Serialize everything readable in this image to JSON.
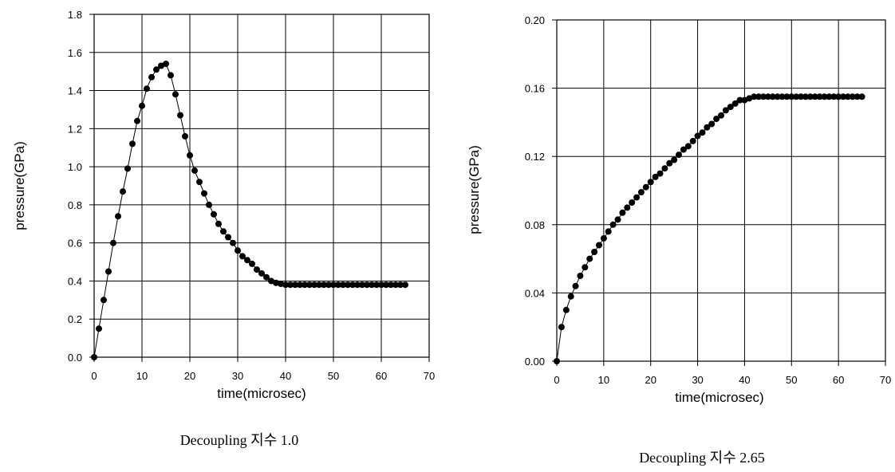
{
  "chart_data": [
    {
      "type": "line",
      "xlabel": "time(microsec)",
      "ylabel": "pressure(GPa)",
      "caption": "Decoupling 지수 1.0",
      "xlim": [
        0,
        70
      ],
      "ylim": [
        0,
        1.8
      ],
      "xticks": [
        0,
        10,
        20,
        30,
        40,
        50,
        60,
        70
      ],
      "xtick_labels": [
        "0",
        "10",
        "20",
        "30",
        "40",
        "50",
        "60",
        "70"
      ],
      "yticks": [
        0,
        0.2,
        0.4,
        0.6,
        0.8,
        1.0,
        1.2,
        1.4,
        1.6,
        1.8
      ],
      "ytick_labels": [
        "0.0",
        "0.2",
        "0.4",
        "0.6",
        "0.8",
        "1.0",
        "1.2",
        "1.4",
        "1.6",
        "1.8"
      ],
      "grid": true,
      "x": [
        0,
        1,
        2,
        3,
        4,
        5,
        6,
        7,
        8,
        9,
        10,
        11,
        12,
        13,
        14,
        15,
        16,
        17,
        18,
        19,
        20,
        21,
        22,
        23,
        24,
        25,
        26,
        27,
        28,
        29,
        30,
        31,
        32,
        33,
        34,
        35,
        36,
        37,
        38,
        39,
        40,
        41,
        42,
        43,
        44,
        45,
        46,
        47,
        48,
        49,
        50,
        51,
        52,
        53,
        54,
        55,
        56,
        57,
        58,
        59,
        60,
        61,
        62,
        63,
        64,
        65
      ],
      "y": [
        0.0,
        0.15,
        0.3,
        0.45,
        0.6,
        0.74,
        0.87,
        0.99,
        1.12,
        1.24,
        1.32,
        1.41,
        1.47,
        1.51,
        1.53,
        1.54,
        1.48,
        1.38,
        1.27,
        1.16,
        1.06,
        0.98,
        0.92,
        0.86,
        0.8,
        0.75,
        0.7,
        0.66,
        0.63,
        0.6,
        0.56,
        0.53,
        0.51,
        0.49,
        0.46,
        0.44,
        0.42,
        0.4,
        0.39,
        0.385,
        0.38,
        0.38,
        0.38,
        0.38,
        0.38,
        0.38,
        0.38,
        0.38,
        0.38,
        0.38,
        0.38,
        0.38,
        0.38,
        0.38,
        0.38,
        0.38,
        0.38,
        0.38,
        0.38,
        0.38,
        0.38,
        0.38,
        0.38,
        0.38,
        0.38,
        0.38
      ]
    },
    {
      "type": "line",
      "xlabel": "time(microsec)",
      "ylabel": "pressure(GPa)",
      "caption": "Decoupling 지수 2.65",
      "xlim": [
        0,
        70
      ],
      "ylim": [
        0,
        0.2
      ],
      "xticks": [
        0,
        10,
        20,
        30,
        40,
        50,
        60,
        70
      ],
      "xtick_labels": [
        "0",
        "10",
        "20",
        "30",
        "40",
        "50",
        "60",
        "70"
      ],
      "yticks": [
        0,
        0.04,
        0.08,
        0.12,
        0.16,
        0.2
      ],
      "ytick_labels": [
        "0.00",
        "0.04",
        "0.08",
        "0.12",
        "0.16",
        "0.20"
      ],
      "grid": true,
      "x": [
        0,
        1,
        2,
        3,
        4,
        5,
        6,
        7,
        8,
        9,
        10,
        11,
        12,
        13,
        14,
        15,
        16,
        17,
        18,
        19,
        20,
        21,
        22,
        23,
        24,
        25,
        26,
        27,
        28,
        29,
        30,
        31,
        32,
        33,
        34,
        35,
        36,
        37,
        38,
        39,
        40,
        41,
        42,
        43,
        44,
        45,
        46,
        47,
        48,
        49,
        50,
        51,
        52,
        53,
        54,
        55,
        56,
        57,
        58,
        59,
        60,
        61,
        62,
        63,
        64,
        65
      ],
      "y": [
        0.0,
        0.02,
        0.03,
        0.038,
        0.044,
        0.05,
        0.055,
        0.06,
        0.064,
        0.068,
        0.072,
        0.076,
        0.08,
        0.083,
        0.087,
        0.09,
        0.093,
        0.096,
        0.099,
        0.102,
        0.105,
        0.108,
        0.11,
        0.113,
        0.116,
        0.118,
        0.121,
        0.124,
        0.126,
        0.129,
        0.132,
        0.134,
        0.137,
        0.139,
        0.142,
        0.144,
        0.147,
        0.149,
        0.151,
        0.153,
        0.153,
        0.154,
        0.155,
        0.155,
        0.155,
        0.155,
        0.155,
        0.155,
        0.155,
        0.155,
        0.155,
        0.155,
        0.155,
        0.155,
        0.155,
        0.155,
        0.155,
        0.155,
        0.155,
        0.155,
        0.155,
        0.155,
        0.155,
        0.155,
        0.155,
        0.155
      ]
    }
  ]
}
